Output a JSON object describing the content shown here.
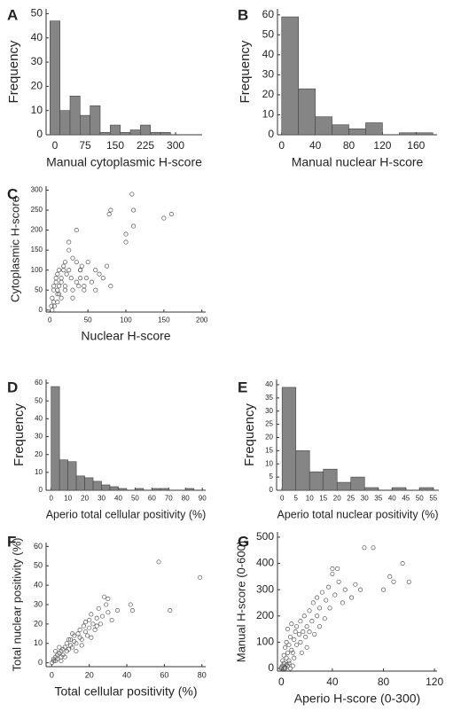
{
  "chart_data": [
    {
      "type": "histogram",
      "panel": "A",
      "ylabel": "Frequency",
      "xlabel": "Manual cytoplasmic H-score",
      "color": "#858585",
      "bins": [
        -12.5,
        12.5,
        37.5,
        62.5,
        87.5,
        112.5,
        137.5,
        162.5,
        187.5,
        212.5,
        237.5,
        262.5,
        287.5
      ],
      "values": [
        47,
        10,
        16,
        8,
        12,
        1,
        4,
        1,
        2,
        4,
        1,
        1
      ],
      "xlim": [
        -22,
        366
      ],
      "xticks": [
        0,
        75,
        150,
        225,
        300
      ],
      "ylim": [
        0,
        52
      ],
      "yticks": [
        0,
        10,
        20,
        30,
        40,
        50
      ]
    },
    {
      "type": "histogram",
      "panel": "B",
      "ylabel": "Frequency",
      "xlabel": "Manual nuclear H-score",
      "color": "#858585",
      "bins": [
        0,
        20,
        40,
        60,
        80,
        100,
        120,
        140,
        160,
        180
      ],
      "values": [
        59,
        23,
        9,
        5,
        3,
        6,
        0,
        1,
        1
      ],
      "xlim": [
        -5,
        185
      ],
      "xticks": [
        0,
        40,
        80,
        120,
        160
      ],
      "ylim": [
        0,
        63
      ],
      "yticks": [
        0,
        10,
        20,
        30,
        40,
        50,
        60
      ]
    },
    {
      "type": "scatter",
      "panel": "C",
      "ylabel": "Cytoplasmic H-score",
      "xlabel": "Nuclear H-score",
      "color": "#555555",
      "x": [
        2,
        3,
        5,
        5,
        8,
        10,
        10,
        12,
        12,
        15,
        15,
        18,
        20,
        20,
        22,
        25,
        25,
        28,
        30,
        30,
        35,
        35,
        38,
        40,
        40,
        42,
        45,
        48,
        50,
        55,
        60,
        60,
        65,
        70,
        75,
        78,
        80,
        80,
        100,
        100,
        108,
        110,
        110,
        150,
        160,
        5,
        8,
        10,
        15,
        20,
        25,
        30,
        35,
        40,
        45,
        3,
        6,
        10,
        12,
        18
      ],
      "values": [
        10,
        30,
        20,
        50,
        70,
        40,
        90,
        60,
        100,
        30,
        80,
        110,
        60,
        120,
        90,
        100,
        170,
        80,
        50,
        130,
        120,
        200,
        60,
        80,
        100,
        110,
        60,
        80,
        120,
        70,
        100,
        50,
        90,
        80,
        110,
        240,
        60,
        250,
        170,
        190,
        290,
        210,
        250,
        230,
        240,
        60,
        80,
        50,
        70,
        50,
        150,
        30,
        70,
        100,
        50,
        0,
        10,
        20,
        40,
        100
      ],
      "xlim": [
        -5,
        205
      ],
      "xticks": [
        0,
        50,
        100,
        150,
        200
      ],
      "ylim": [
        -5,
        310
      ],
      "yticks": [
        0,
        50,
        100,
        150,
        200,
        250,
        300
      ]
    },
    {
      "type": "histogram",
      "panel": "D",
      "ylabel": "Frequency",
      "xlabel": "Aperio total cellular positivity (%)",
      "color": "#858585",
      "bins": [
        0,
        5,
        10,
        15,
        20,
        25,
        30,
        35,
        40,
        45,
        50,
        55,
        60,
        65,
        70,
        75,
        80,
        85
      ],
      "values": [
        58,
        17,
        16,
        8,
        7,
        5,
        3,
        2,
        1,
        0,
        1,
        0,
        1,
        1,
        0,
        0,
        1
      ],
      "xlim": [
        -3,
        92
      ],
      "xticks": [
        0,
        10,
        20,
        30,
        40,
        50,
        60,
        70,
        80,
        90
      ],
      "ylim": [
        0,
        62
      ],
      "yticks": [
        0,
        10,
        20,
        30,
        40,
        50,
        60
      ]
    },
    {
      "type": "histogram",
      "panel": "E",
      "ylabel": "Frequency",
      "xlabel": "Aperio total nuclear positivity (%)",
      "color": "#858585",
      "bins": [
        0,
        5,
        10,
        15,
        20,
        25,
        30,
        35,
        40,
        45,
        50,
        55
      ],
      "values": [
        39,
        15,
        7,
        8,
        3,
        5,
        1,
        0,
        1,
        0,
        1
      ],
      "xlim": [
        -2,
        57
      ],
      "xticks": [
        0,
        5,
        10,
        15,
        20,
        25,
        30,
        35,
        40,
        45,
        50,
        55
      ],
      "ylim": [
        0,
        42
      ],
      "yticks": [
        0,
        5,
        10,
        15,
        20,
        25,
        30,
        35,
        40
      ]
    },
    {
      "type": "scatter",
      "panel": "F",
      "ylabel": "Total nuclear positivity (%)",
      "xlabel": "Total cellular positivity (%)",
      "color": "#555555",
      "x": [
        0,
        1,
        1,
        2,
        2,
        3,
        3,
        4,
        5,
        5,
        6,
        6,
        7,
        8,
        8,
        9,
        10,
        10,
        11,
        12,
        12,
        13,
        14,
        15,
        15,
        16,
        17,
        18,
        18,
        19,
        20,
        20,
        21,
        22,
        23,
        24,
        25,
        26,
        27,
        28,
        29,
        30,
        30,
        32,
        35,
        42,
        43,
        57,
        63,
        79,
        2,
        4,
        5,
        7,
        9,
        11,
        13,
        16,
        21,
        24
      ],
      "values": [
        0,
        1,
        2,
        3,
        1,
        4,
        2,
        5,
        6,
        3,
        7,
        4,
        8,
        6,
        10,
        7,
        12,
        9,
        8,
        14,
        11,
        10,
        15,
        13,
        17,
        12,
        19,
        16,
        21,
        14,
        22,
        18,
        25,
        20,
        17,
        23,
        28,
        20,
        24,
        34,
        30,
        33,
        26,
        22,
        27,
        30,
        27,
        52,
        27,
        44,
        6,
        8,
        1,
        3,
        12,
        15,
        6,
        9,
        13,
        19
      ],
      "xlim": [
        -3,
        82
      ],
      "xticks": [
        0,
        20,
        40,
        60,
        80
      ],
      "ylim": [
        -2,
        62
      ],
      "yticks": [
        0,
        10,
        20,
        30,
        40,
        50,
        60
      ]
    },
    {
      "type": "scatter",
      "panel": "G",
      "ylabel": "Manual H-score (0-600)",
      "xlabel": "Aperio H-score (0-300)",
      "color": "#555555",
      "x": [
        0,
        1,
        1,
        2,
        2,
        3,
        3,
        4,
        4,
        5,
        5,
        6,
        6,
        7,
        8,
        8,
        9,
        10,
        10,
        11,
        12,
        12,
        14,
        15,
        15,
        16,
        17,
        18,
        19,
        20,
        20,
        22,
        22,
        24,
        25,
        26,
        28,
        28,
        30,
        30,
        32,
        34,
        35,
        37,
        38,
        40,
        40,
        42,
        44,
        45,
        48,
        50,
        55,
        58,
        62,
        65,
        72,
        80,
        85,
        88,
        95,
        100,
        2,
        3,
        5,
        7,
        0,
        4,
        6,
        9
      ],
      "values": [
        0,
        10,
        30,
        50,
        20,
        80,
        0,
        40,
        100,
        60,
        150,
        20,
        90,
        120,
        70,
        170,
        10,
        40,
        110,
        140,
        90,
        160,
        130,
        100,
        180,
        60,
        140,
        200,
        120,
        160,
        80,
        220,
        140,
        180,
        250,
        130,
        200,
        270,
        160,
        230,
        290,
        190,
        260,
        310,
        230,
        380,
        360,
        280,
        380,
        330,
        250,
        300,
        270,
        320,
        300,
        460,
        460,
        300,
        350,
        330,
        400,
        330,
        0,
        5,
        10,
        0,
        5,
        15,
        30,
        60
      ],
      "xlim": [
        -3,
        122
      ],
      "xticks": [
        0,
        40,
        80,
        120
      ],
      "ylim": [
        -10,
        520
      ],
      "yticks": [
        0,
        100,
        200,
        300,
        400,
        500
      ]
    }
  ]
}
